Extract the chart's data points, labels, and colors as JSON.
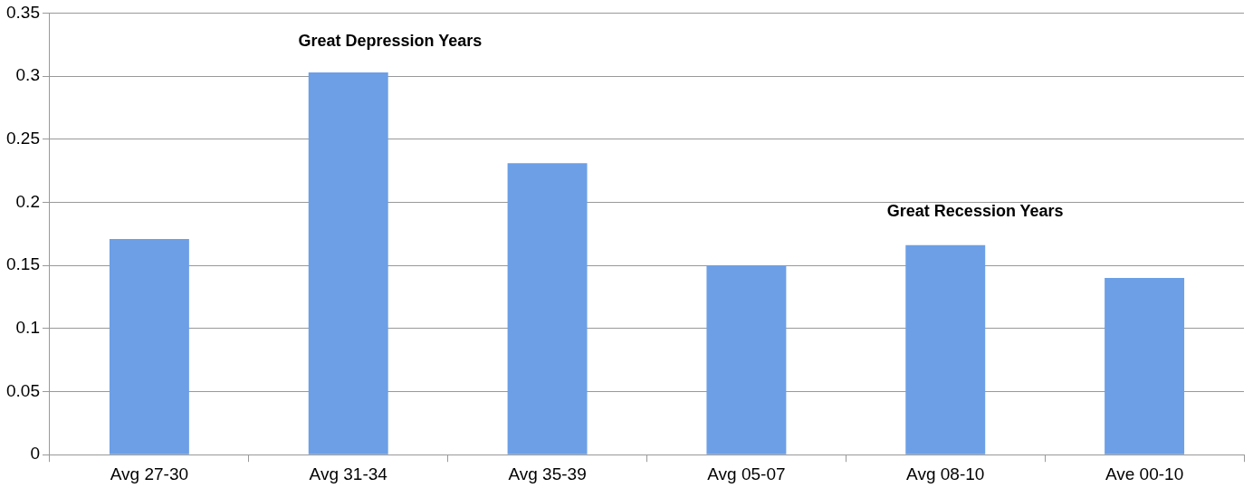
{
  "chart_data": {
    "type": "bar",
    "categories": [
      "Avg 27-30",
      "Avg 31-34",
      "Avg 35-39",
      "Avg 05-07",
      "Avg 08-10",
      "Ave 00-10"
    ],
    "series": [
      {
        "color": "#6c9fe6",
        "values": [
          0.171,
          0.303,
          0.231,
          0.15,
          0.166,
          0.14
        ]
      }
    ],
    "ylim": [
      0,
      0.35
    ],
    "yticks": [
      0,
      0.05,
      0.1,
      0.15,
      0.2,
      0.25,
      0.3,
      0.35
    ],
    "grid": "y",
    "legend": false,
    "annotations": [
      "Great Depression Years",
      "Great Recession Years"
    ]
  }
}
